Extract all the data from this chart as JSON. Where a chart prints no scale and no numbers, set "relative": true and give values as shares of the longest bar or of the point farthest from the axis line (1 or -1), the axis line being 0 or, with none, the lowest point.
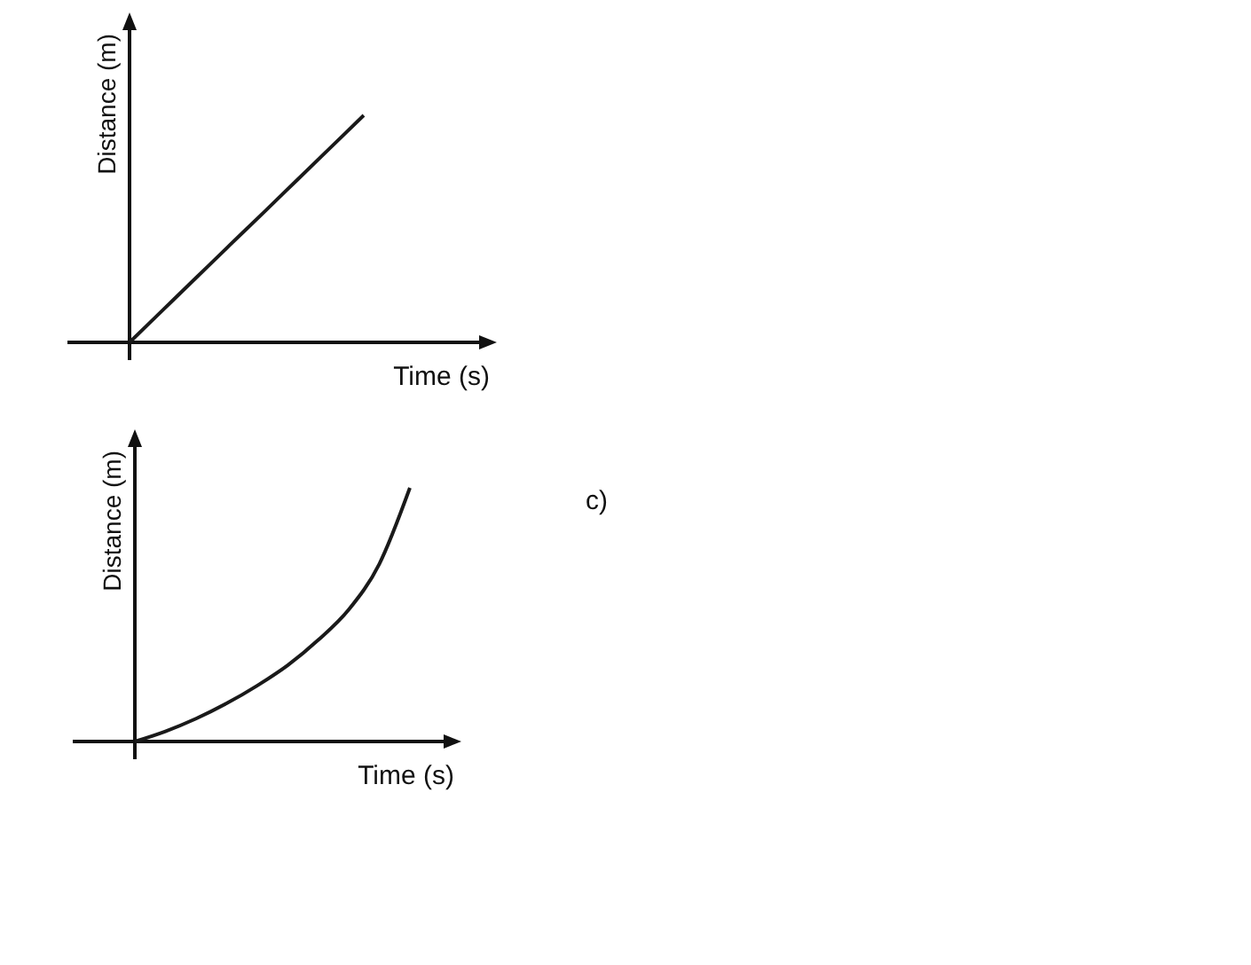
{
  "chart_data": [
    {
      "type": "line",
      "relative": true,
      "xlabel": "Time (s)",
      "ylabel": "Distance (m)",
      "tick_labels": false,
      "categories": [
        null,
        null,
        null,
        null,
        null,
        null,
        null,
        null,
        null,
        null
      ],
      "series": [
        {
          "color": "#1a1a1a",
          "values": [
            0,
            0.143,
            0.286,
            0.429,
            0.571,
            0.714,
            0.857,
            1,
            null,
            null
          ]
        }
      ]
    },
    {
      "type": "line",
      "relative": true,
      "xlabel": "Time (s)",
      "ylabel": "Distance (m)",
      "tick_labels": false,
      "annotations": [
        "c)"
      ],
      "categories": [
        null,
        null,
        null,
        null,
        null,
        null,
        null,
        null,
        null,
        null,
        null
      ],
      "series": [
        {
          "color": "#1a1a1a",
          "values": [
            0,
            0.04,
            0.09,
            0.15,
            0.22,
            0.3,
            0.4,
            0.52,
            0.7,
            1,
            null
          ]
        }
      ]
    }
  ]
}
